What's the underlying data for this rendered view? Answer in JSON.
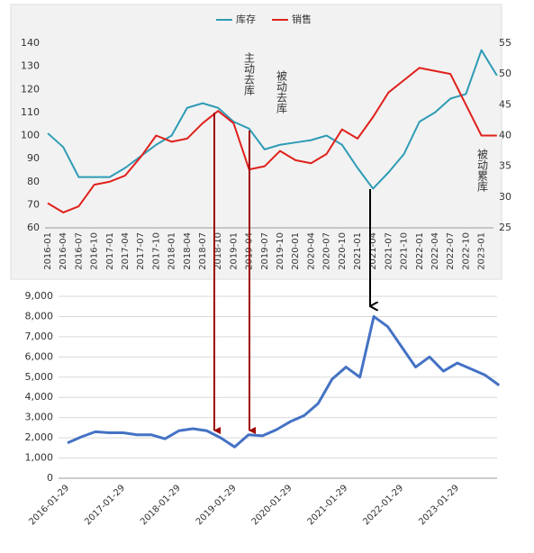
{
  "chart_data": [
    {
      "type": "line",
      "categories": [
        "2016-01",
        "2016-04",
        "2016-07",
        "2016-10",
        "2017-01",
        "2017-04",
        "2017-07",
        "2017-10",
        "2018-01",
        "2018-04",
        "2018-07",
        "2018-10",
        "2019-01",
        "2019-04",
        "2019-07",
        "2019-10",
        "2020-01",
        "2020-04",
        "2020-07",
        "2020-10",
        "2021-01",
        "2021-04",
        "2021-07",
        "2021-10",
        "2022-01",
        "2022-04",
        "2022-07",
        "2022-10",
        "2023-01",
        null
      ],
      "series": [
        {
          "name": "库存",
          "color": "#2e9bb5",
          "values": [
            101,
            95,
            82,
            82,
            82,
            86,
            91,
            96,
            100,
            112,
            114,
            112,
            106,
            103,
            94,
            96,
            97,
            98,
            100,
            96,
            86,
            77,
            84,
            92,
            106,
            110,
            116,
            118,
            137,
            126
          ]
        },
        {
          "name": "销售",
          "color": "#e0201b",
          "axis": "y2",
          "values": [
            29,
            27.5,
            28.5,
            32,
            32.5,
            33.5,
            36.5,
            40,
            39,
            39.5,
            42,
            44,
            42,
            34.5,
            35,
            37.5,
            36,
            35.5,
            37,
            41,
            39.5,
            43,
            47,
            49,
            51,
            50.5,
            50,
            45,
            40,
            40
          ]
        }
      ],
      "ylim": [
        60,
        140
      ],
      "yticks": [
        60,
        70,
        80,
        90,
        100,
        110,
        120,
        130,
        140
      ],
      "y2lim": [
        25,
        55
      ],
      "y2ticks": [
        25,
        30,
        35,
        40,
        45,
        50,
        55
      ],
      "legend": "top",
      "annotations": [
        "主动去库",
        "被动去库",
        "被动累库"
      ]
    },
    {
      "type": "line",
      "categories": [
        "2016-01-29",
        null,
        null,
        null,
        "2017-01-29",
        null,
        null,
        null,
        "2018-01-29",
        null,
        null,
        null,
        "2019-01-29",
        null,
        null,
        null,
        "2020-01-29",
        null,
        null,
        null,
        "2021-01-29",
        null,
        null,
        null,
        "2022-01-29",
        null,
        null,
        null,
        "2023-01-29",
        null,
        null,
        null
      ],
      "series": [
        {
          "color": "#4472c4",
          "values": [
            1750,
            2050,
            2300,
            2250,
            2250,
            2150,
            2150,
            1950,
            2350,
            2450,
            2350,
            2000,
            1550,
            2150,
            2100,
            2400,
            2800,
            3100,
            3700,
            4900,
            5500,
            5000,
            8000,
            7500,
            6500,
            5500,
            6000,
            5300,
            5700,
            5400,
            5100,
            4600
          ]
        }
      ],
      "ylim": [
        0,
        9000
      ],
      "yticks": [
        0,
        {
          "value": 1000,
          "label": "1,000"
        },
        {
          "value": 2000,
          "label": "2,000"
        },
        {
          "value": 3000,
          "label": "3,000"
        },
        {
          "value": 4000,
          "label": "4,000"
        },
        {
          "value": 5000,
          "label": "5,000"
        },
        {
          "value": 6000,
          "label": "6,000"
        },
        {
          "value": 7000,
          "label": "7,000"
        },
        {
          "value": 8000,
          "label": "8,000"
        },
        {
          "value": 9000,
          "label": "9,000"
        }
      ]
    }
  ]
}
